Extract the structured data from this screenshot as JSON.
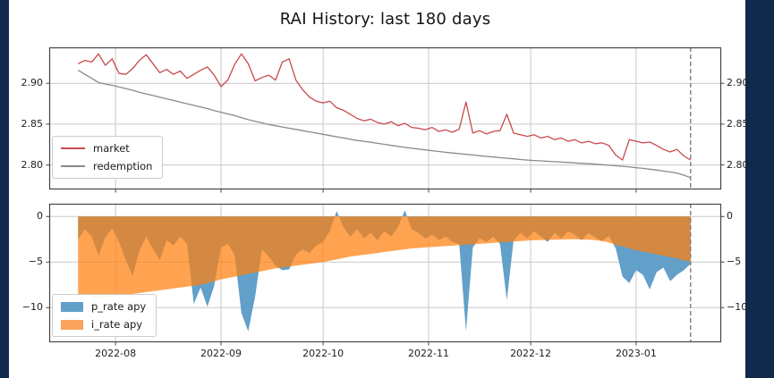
{
  "title": "RAI History: last 180 days",
  "colors": {
    "band": "#12294e",
    "market": "#c8494d",
    "redemption": "#8a8a8a",
    "p_rate_fill": "#62a0ca",
    "i_rate_fill": "rgba(255,127,14,0.72)",
    "i_rate_solid": "#f9a35f",
    "grid": "#c9c9c9",
    "frame": "#454545",
    "dashed": "#7f7f7f",
    "text": "#212121"
  },
  "x_axis": {
    "ticks": [
      {
        "day": 11,
        "label": "2022-08"
      },
      {
        "day": 42,
        "label": "2022-09"
      },
      {
        "day": 72,
        "label": "2022-10"
      },
      {
        "day": 103,
        "label": "2022-11"
      },
      {
        "day": 133,
        "label": "2022-12"
      },
      {
        "day": 164,
        "label": "2023-01"
      }
    ],
    "xlim_days": [
      -8.5,
      189
    ],
    "dashed_day": 180,
    "day_start": 0,
    "day_step": 2
  },
  "chart_data": [
    {
      "type": "line",
      "title": "RAI History: last 180 days",
      "ylim": [
        2.77,
        2.944
      ],
      "yticks": [
        {
          "v": 2.9,
          "label": "2.90"
        },
        {
          "v": 2.85,
          "label": "2.85"
        },
        {
          "v": 2.8,
          "label": "2.80"
        }
      ],
      "legend_loc": "lower left",
      "grid": true,
      "series": [
        {
          "name": "market",
          "values": [
            2.924,
            2.928,
            2.926,
            2.936,
            2.922,
            2.93,
            2.912,
            2.911,
            2.918,
            2.928,
            2.935,
            2.924,
            2.913,
            2.917,
            2.911,
            2.915,
            2.906,
            2.911,
            2.916,
            2.92,
            2.91,
            2.896,
            2.904,
            2.923,
            2.936,
            2.924,
            2.903,
            2.907,
            2.91,
            2.904,
            2.926,
            2.93,
            2.904,
            2.892,
            2.883,
            2.878,
            2.876,
            2.878,
            2.87,
            2.867,
            2.862,
            2.857,
            2.854,
            2.856,
            2.852,
            2.85,
            2.853,
            2.848,
            2.851,
            2.846,
            2.845,
            2.843,
            2.846,
            2.841,
            2.843,
            2.84,
            2.844,
            2.877,
            2.839,
            2.842,
            2.838,
            2.841,
            2.842,
            2.862,
            2.839,
            2.837,
            2.835,
            2.837,
            2.833,
            2.835,
            2.831,
            2.833,
            2.829,
            2.831,
            2.827,
            2.829,
            2.826,
            2.827,
            2.824,
            2.812,
            2.806,
            2.831,
            2.829,
            2.827,
            2.828,
            2.824,
            2.819,
            2.816,
            2.819,
            2.811,
            2.806
          ]
        },
        {
          "name": "redemption",
          "values": [
            2.916,
            2.911,
            2.906,
            2.901,
            2.899,
            2.8975,
            2.8955,
            2.8935,
            2.8915,
            2.889,
            2.887,
            2.885,
            2.883,
            2.881,
            2.879,
            2.877,
            2.875,
            2.873,
            2.871,
            2.869,
            2.8665,
            2.8645,
            2.8625,
            2.8605,
            2.858,
            2.8555,
            2.8535,
            2.8515,
            2.8495,
            2.848,
            2.8465,
            2.845,
            2.8435,
            2.842,
            2.8405,
            2.839,
            2.8375,
            2.836,
            2.8345,
            2.833,
            2.8315,
            2.83,
            2.829,
            2.8278,
            2.8265,
            2.8253,
            2.824,
            2.8228,
            2.8215,
            2.8205,
            2.8195,
            2.8185,
            2.8175,
            2.8165,
            2.8155,
            2.8147,
            2.8138,
            2.813,
            2.8122,
            2.8113,
            2.8105,
            2.8097,
            2.809,
            2.8082,
            2.8075,
            2.8067,
            2.806,
            2.8055,
            2.805,
            2.8045,
            2.804,
            2.8035,
            2.803,
            2.8025,
            2.802,
            2.8015,
            2.801,
            2.8003,
            2.7997,
            2.799,
            2.7983,
            2.7975,
            2.7967,
            2.7958,
            2.7948,
            2.7937,
            2.7925,
            2.7913,
            2.79,
            2.7875,
            2.7845
          ]
        }
      ]
    },
    {
      "type": "area",
      "ylim": [
        -13.8,
        1.4
      ],
      "yticks": [
        {
          "v": 0,
          "label": "0"
        },
        {
          "v": -5,
          "label": "−5"
        },
        {
          "v": -10,
          "label": "−10"
        }
      ],
      "legend_loc": "lower left",
      "grid": true,
      "series": [
        {
          "name": "p_rate apy",
          "values": [
            -2.5,
            -1.4,
            -2.2,
            -4.3,
            -2.3,
            -1.3,
            -2.8,
            -4.8,
            -6.5,
            -3.8,
            -2.2,
            -3.6,
            -4.8,
            -2.6,
            -3.2,
            -2.2,
            -3.0,
            -9.6,
            -7.8,
            -9.9,
            -7.6,
            -3.4,
            -3.0,
            -4.2,
            -10.6,
            -12.6,
            -8.8,
            -3.6,
            -4.4,
            -5.4,
            -5.9,
            -5.8,
            -4.2,
            -3.6,
            -4.0,
            -3.2,
            -2.8,
            -1.6,
            0.6,
            -1.2,
            -2.2,
            -1.4,
            -2.4,
            -1.8,
            -2.6,
            -1.6,
            -2.2,
            -1.2,
            0.7,
            -1.4,
            -1.8,
            -2.4,
            -2.0,
            -2.6,
            -2.2,
            -2.8,
            -3.0,
            -12.6,
            -3.4,
            -2.4,
            -2.8,
            -2.2,
            -3.0,
            -9.2,
            -2.6,
            -1.8,
            -2.4,
            -1.6,
            -2.2,
            -2.8,
            -1.8,
            -2.4,
            -1.6,
            -2.0,
            -2.6,
            -1.8,
            -2.3,
            -2.7,
            -2.1,
            -3.5,
            -6.6,
            -7.3,
            -5.9,
            -6.4,
            -8.0,
            -6.1,
            -5.6,
            -7.1,
            -6.4,
            -5.9,
            -5.2
          ]
        },
        {
          "name": "i_rate apy",
          "values": [
            -8.8,
            -8.7,
            -8.8,
            -8.9,
            -8.9,
            -8.8,
            -8.7,
            -8.6,
            -8.5,
            -8.4,
            -8.3,
            -8.2,
            -8.1,
            -8.0,
            -7.9,
            -7.8,
            -7.7,
            -7.6,
            -7.5,
            -7.3,
            -7.1,
            -6.9,
            -6.75,
            -6.6,
            -6.45,
            -6.3,
            -6.15,
            -6.0,
            -5.85,
            -5.7,
            -5.6,
            -5.5,
            -5.4,
            -5.3,
            -5.2,
            -5.1,
            -5.0,
            -4.85,
            -4.7,
            -4.55,
            -4.4,
            -4.3,
            -4.2,
            -4.1,
            -4.0,
            -3.9,
            -3.8,
            -3.7,
            -3.6,
            -3.5,
            -3.45,
            -3.4,
            -3.35,
            -3.3,
            -3.25,
            -3.2,
            -3.15,
            -3.1,
            -3.05,
            -3.0,
            -2.95,
            -2.9,
            -2.85,
            -2.8,
            -2.75,
            -2.7,
            -2.65,
            -2.6,
            -2.58,
            -2.56,
            -2.54,
            -2.52,
            -2.5,
            -2.5,
            -2.52,
            -2.55,
            -2.6,
            -2.7,
            -2.85,
            -3.1,
            -3.3,
            -3.5,
            -3.7,
            -3.85,
            -4.0,
            -4.15,
            -4.3,
            -4.45,
            -4.6,
            -4.8,
            -5.0
          ]
        }
      ]
    }
  ]
}
